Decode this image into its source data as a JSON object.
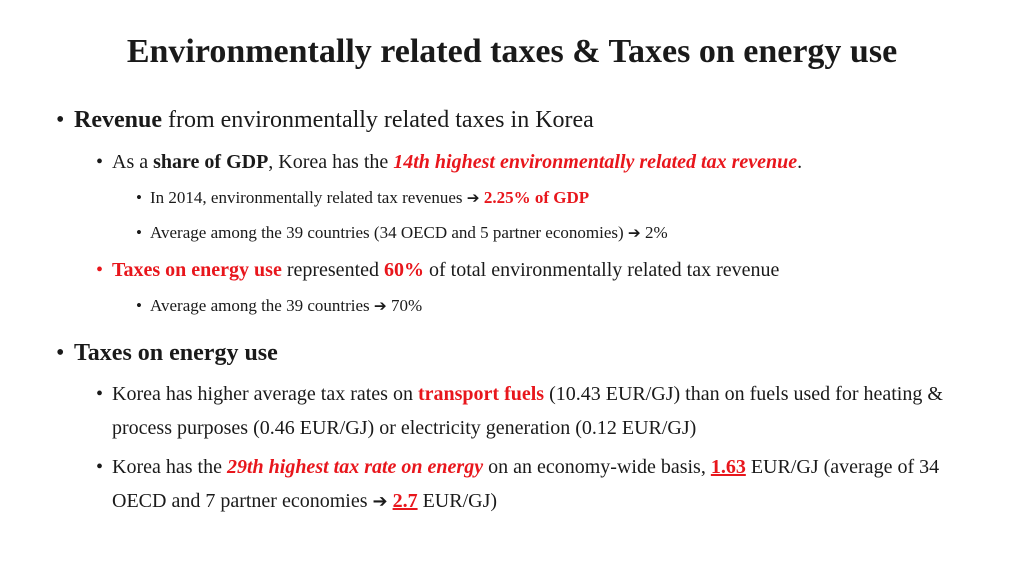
{
  "title": "Environmentally related taxes & Taxes on energy use",
  "s1": {
    "head_bold": "Revenue",
    "head_rest": " from environmentally related taxes in Korea",
    "gdp": {
      "pre": "As a ",
      "bold": "share of GDP",
      "mid": ", Korea has the ",
      "hl": "14th highest environmentally related tax revenue",
      "end": "."
    },
    "y2014": {
      "text": "In 2014, environmentally related tax revenues ",
      "arrow": "➔",
      "value": " 2.25% of GDP"
    },
    "avg39": {
      "text": "Average among the 39 countries (34 OECD and 5 partner economies) ",
      "arrow": "➔",
      "value": " 2%"
    },
    "energy": {
      "hl": "Taxes on energy use",
      "mid": " represented ",
      "pct": "60%",
      "end": " of total environmentally related tax revenue"
    },
    "energy_avg": {
      "text": "Average among the 39 countries ",
      "arrow": "➔",
      "value": " 70%"
    }
  },
  "s2": {
    "head": "Taxes on energy use",
    "transport": {
      "pre": "Korea has higher average tax rates on ",
      "bold": "transport fuels",
      "post": " (10.43 EUR/GJ) than on fuels used for heating & process purposes (0.46 EUR/GJ) or electricity generation (0.12 EUR/GJ)"
    },
    "rank": {
      "pre": "Korea has the ",
      "hl": "29th highest tax rate on energy",
      "mid": " on an economy-wide basis, ",
      "val1": "1.63",
      "mid2": " EUR/GJ (average of 34 OECD and 7 partner economies ",
      "arrow": "➔",
      "val2": "2.7",
      "end": " EUR/GJ)"
    }
  }
}
